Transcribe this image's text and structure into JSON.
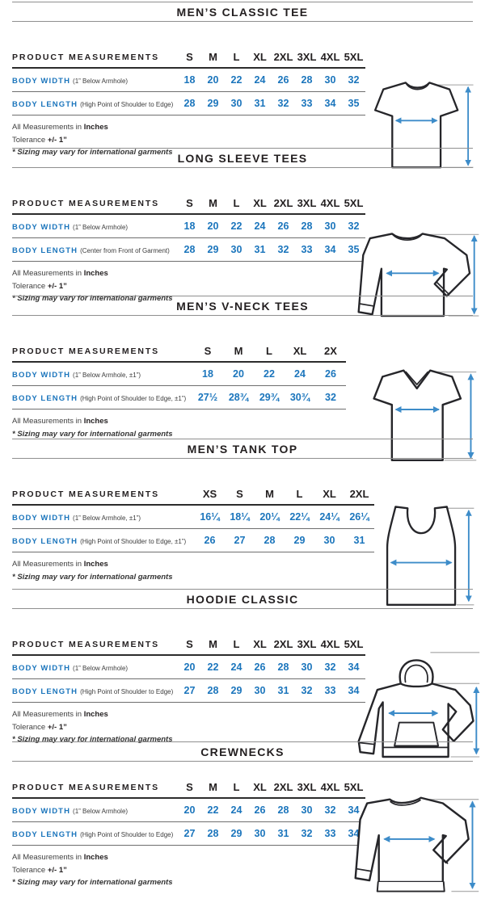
{
  "colors": {
    "accent_blue": "#1b75bc",
    "arrow_blue": "#3d8cc9",
    "heading_black": "#231f20",
    "note_gray": "#3f3f3f",
    "rule_gray": "#8f8f8f"
  },
  "sections": [
    {
      "title": "MEN’S CLASSIC TEE",
      "illustration": "classic-tee",
      "measurements_label": "PRODUCT MEASUREMENTS",
      "columns": [
        "S",
        "M",
        "L",
        "XL",
        "2XL",
        "3XL",
        "4XL",
        "5XL"
      ],
      "rows": [
        {
          "label": "BODY WIDTH",
          "note": "(1” Below Armhole)",
          "values": [
            "18",
            "20",
            "22",
            "24",
            "26",
            "28",
            "30",
            "32"
          ]
        },
        {
          "label": "BODY LENGTH",
          "note": "(High Point of Shoulder to Edge)",
          "values": [
            "28",
            "29",
            "30",
            "31",
            "32",
            "33",
            "34",
            "35"
          ]
        }
      ],
      "notes": [
        {
          "plain": "All Measurements in ",
          "bold": "Inches"
        },
        {
          "plain": "Tolerance ",
          "bold": "+/- 1”"
        },
        {
          "italic": "* Sizing may vary for international garments"
        }
      ]
    },
    {
      "title": "LONG SLEEVE TEES",
      "illustration": "long-sleeve-tee",
      "measurements_label": "PRODUCT MEASUREMENTS",
      "columns": [
        "S",
        "M",
        "L",
        "XL",
        "2XL",
        "3XL",
        "4XL",
        "5XL"
      ],
      "rows": [
        {
          "label": "BODY WIDTH",
          "note": "(1” Below Armhole)",
          "values": [
            "18",
            "20",
            "22",
            "24",
            "26",
            "28",
            "30",
            "32"
          ]
        },
        {
          "label": "BODY LENGTH",
          "note": "(Center from Front of Garment)",
          "values": [
            "28",
            "29",
            "30",
            "31",
            "32",
            "33",
            "34",
            "35"
          ]
        }
      ],
      "notes": [
        {
          "plain": "All Measurements in ",
          "bold": "Inches"
        },
        {
          "plain": "Tolerance ",
          "bold": "+/- 1”"
        },
        {
          "italic": "* Sizing may vary for international garments"
        }
      ]
    },
    {
      "title": "MEN’S V-NECK TEES",
      "illustration": "v-neck-tee",
      "measurements_label": "PRODUCT MEASUREMENTS",
      "columns": [
        "S",
        "M",
        "L",
        "XL",
        "2X"
      ],
      "rows": [
        {
          "label": "BODY WIDTH",
          "note": "(1” Below Armhole, ±1”)",
          "values": [
            "18",
            "20",
            "22",
            "24",
            "26"
          ]
        },
        {
          "label": "BODY LENGTH",
          "note": "(High Point of Shoulder to Edge, ±1”)",
          "values": [
            "27½",
            "28¾",
            "29¾",
            "30¾",
            "32"
          ]
        }
      ],
      "notes": [
        {
          "plain": "All Measurements in ",
          "bold": "Inches"
        },
        {
          "italic": "* Sizing may vary for international garments"
        }
      ]
    },
    {
      "title": "MEN’S TANK TOP",
      "illustration": "tank-top",
      "measurements_label": "PRODUCT MEASUREMENTS",
      "columns": [
        "XS",
        "S",
        "M",
        "L",
        "XL",
        "2XL"
      ],
      "rows": [
        {
          "label": "BODY WIDTH",
          "note": "(1” Below Armhole, ±1”)",
          "values": [
            "16¼",
            "18¼",
            "20¼",
            "22¼",
            "24¼",
            "26¼"
          ]
        },
        {
          "label": "BODY LENGTH",
          "note": "(High Point of Shoulder to Edge, ±1”)",
          "values": [
            "26",
            "27",
            "28",
            "29",
            "30",
            "31"
          ]
        }
      ],
      "notes": [
        {
          "plain": "All Measurements in ",
          "bold": "Inches"
        },
        {
          "italic": "* Sizing may vary for international garments"
        }
      ]
    },
    {
      "title": "HOODIE CLASSIC",
      "illustration": "hoodie",
      "measurements_label": "PRODUCT MEASUREMENTS",
      "columns": [
        "S",
        "M",
        "L",
        "XL",
        "2XL",
        "3XL",
        "4XL",
        "5XL"
      ],
      "rows": [
        {
          "label": "BODY WIDTH",
          "note": "(1” Below Armhole)",
          "values": [
            "20",
            "22",
            "24",
            "26",
            "28",
            "30",
            "32",
            "34"
          ]
        },
        {
          "label": "BODY LENGTH",
          "note": "(High Point of Shoulder to Edge)",
          "values": [
            "27",
            "28",
            "29",
            "30",
            "31",
            "32",
            "33",
            "34"
          ]
        }
      ],
      "notes": [
        {
          "plain": "All Measurements in ",
          "bold": "Inches"
        },
        {
          "plain": "Tolerance ",
          "bold": "+/- 1”"
        },
        {
          "italic": "* Sizing may vary for international garments"
        }
      ]
    },
    {
      "title": "CREWNECKS",
      "illustration": "crewneck",
      "measurements_label": "PRODUCT MEASUREMENTS",
      "columns": [
        "S",
        "M",
        "L",
        "XL",
        "2XL",
        "3XL",
        "4XL",
        "5XL"
      ],
      "rows": [
        {
          "label": "BODY WIDTH",
          "note": "(1” Below Armhole)",
          "values": [
            "20",
            "22",
            "24",
            "26",
            "28",
            "30",
            "32",
            "34"
          ]
        },
        {
          "label": "BODY LENGTH",
          "note": "(High Point of Shoulder to Edge)",
          "values": [
            "27",
            "28",
            "29",
            "30",
            "31",
            "32",
            "33",
            "34"
          ]
        }
      ],
      "notes": [
        {
          "plain": "All Measurements in ",
          "bold": "Inches"
        },
        {
          "plain": "Tolerance ",
          "bold": "+/- 1”"
        },
        {
          "italic": "* Sizing may vary for international garments"
        }
      ]
    }
  ]
}
